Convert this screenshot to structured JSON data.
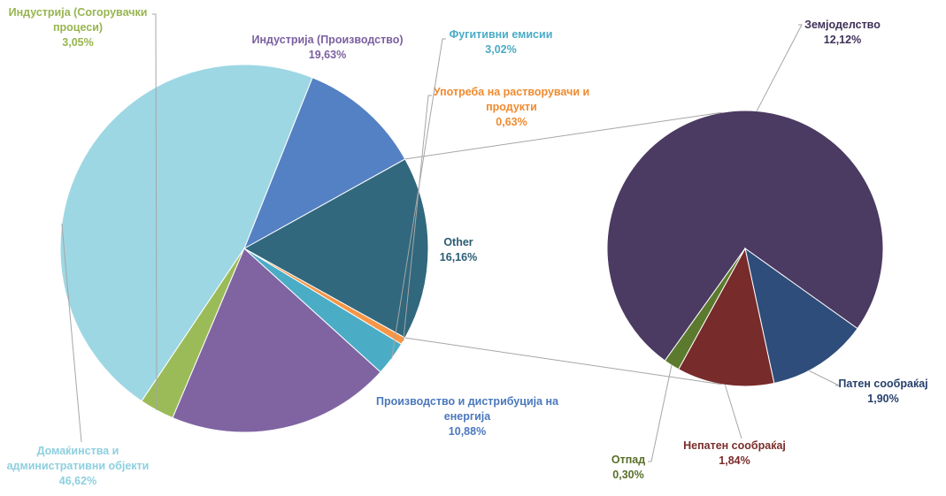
{
  "chart_data": {
    "type": "pie",
    "title": "",
    "main_pie": {
      "slices": [
        {
          "name": "Other",
          "value": 16.16,
          "label_pct": "16,16%",
          "color": "#31687d",
          "label_color": "#2a5d73"
        },
        {
          "name": "Производство и дистрибуција на енергија",
          "value": 10.88,
          "label_pct": "10,88%",
          "color": "#5481c3",
          "label_color": "#4a78bd"
        },
        {
          "name": "Домаќинства и административни објекти",
          "value": 46.62,
          "label_pct": "46,62%",
          "color": "#9dd7e3",
          "label_color": "#8dd0df"
        },
        {
          "name": "Индустрија (Согорувачки процеси)",
          "value": 3.05,
          "label_pct": "3,05%",
          "color": "#9bbb59",
          "label_color": "#97b54f"
        },
        {
          "name": "Индустрија (Производство)",
          "value": 19.63,
          "label_pct": "19,63%",
          "color": "#8064a2",
          "label_color": "#7b5fa0"
        },
        {
          "name": "Фугитивни емисии",
          "value": 3.02,
          "label_pct": "3,02%",
          "color": "#4bacc6",
          "label_color": "#4aabc6"
        },
        {
          "name": "Употреба на растворувачи и продукти",
          "value": 0.63,
          "label_pct": "0,63%",
          "color": "#f79646",
          "label_color": "#f08a2e"
        }
      ]
    },
    "secondary_pie": {
      "source": "Other",
      "slices": [
        {
          "name": "Земјоделство",
          "value": 12.12,
          "label_pct": "12,12%",
          "color": "#4b3a61",
          "label_color": "#3f3158"
        },
        {
          "name": "Патен сообраќај",
          "value": 1.9,
          "label_pct": "1,90%",
          "color": "#2f4d7a",
          "label_color": "#27406b"
        },
        {
          "name": "Непатен сообраќај",
          "value": 1.84,
          "label_pct": "1,84%",
          "color": "#772b2a",
          "label_color": "#7a2d2b"
        },
        {
          "name": "Отпад",
          "value": 0.3,
          "label_pct": "0,30%",
          "color": "#5c7a2e",
          "label_color": "#586f29"
        }
      ]
    },
    "legend": "none"
  }
}
